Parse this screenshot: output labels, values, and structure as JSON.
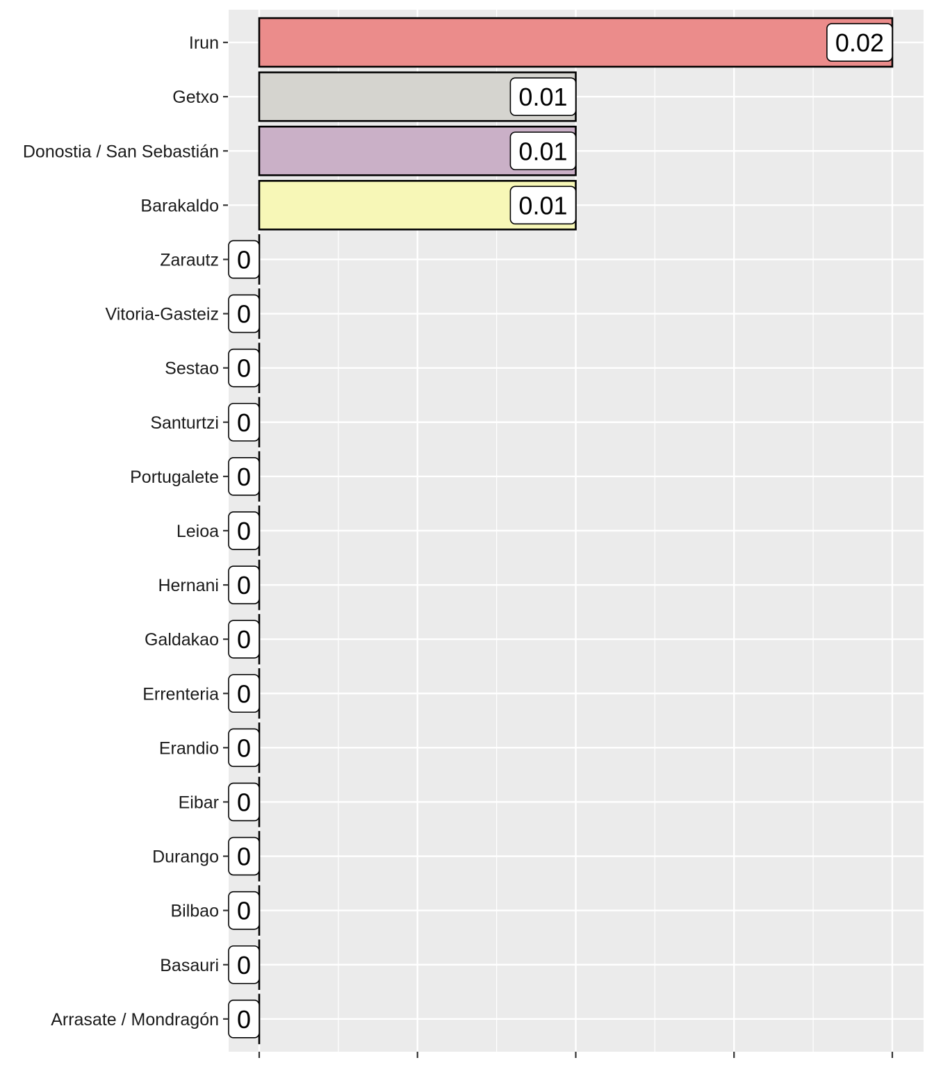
{
  "chart_data": {
    "type": "bar",
    "orientation": "horizontal",
    "title": "",
    "xlabel": "",
    "ylabel": "",
    "categories": [
      "Irun",
      "Getxo",
      "Donostia / San Sebastián",
      "Barakaldo",
      "Zarautz",
      "Vitoria-Gasteiz",
      "Sestao",
      "Santurtzi",
      "Portugalete",
      "Leioa",
      "Hernani",
      "Galdakao",
      "Errenteria",
      "Erandio",
      "Eibar",
      "Durango",
      "Bilbao",
      "Basauri",
      "Arrasate / Mondragón"
    ],
    "values": [
      0.02,
      0.01,
      0.01,
      0.01,
      0,
      0,
      0,
      0,
      0,
      0,
      0,
      0,
      0,
      0,
      0,
      0,
      0,
      0,
      0
    ],
    "value_labels": [
      "0.02",
      "0.01",
      "0.01",
      "0.01",
      "0",
      "0",
      "0",
      "0",
      "0",
      "0",
      "0",
      "0",
      "0",
      "0",
      "0",
      "0",
      "0",
      "0",
      "0"
    ],
    "bar_colors": [
      "#EB8C8B",
      "#D5D4CF",
      "#CAB0C7",
      "#F7F7B7",
      "#EB8C8B",
      "#EB8C8B",
      "#EB8C8B",
      "#EB8C8B",
      "#EB8C8B",
      "#EB8C8B",
      "#EB8C8B",
      "#EB8C8B",
      "#EB8C8B",
      "#EB8C8B",
      "#EB8C8B",
      "#EB8C8B",
      "#EB8C8B",
      "#EB8C8B",
      "#EB8C8B"
    ],
    "xlim": [
      0,
      0.02
    ],
    "x_ticks": [
      0,
      0.005,
      0.01,
      0.015,
      0.02
    ],
    "x_tick_labels_visible": false,
    "grid": true,
    "legend": "none",
    "panel_background": "#EBEBEB",
    "gridline_color": "#FFFFFF"
  }
}
